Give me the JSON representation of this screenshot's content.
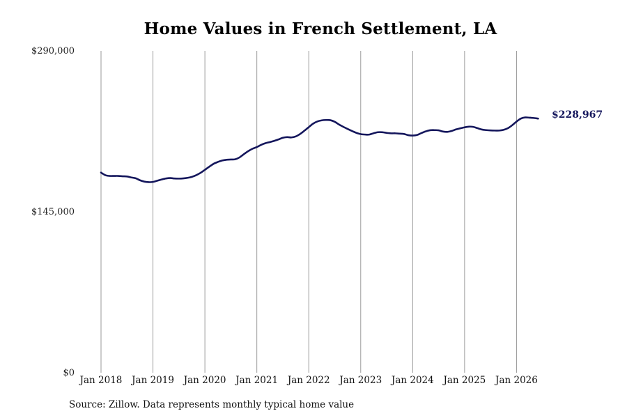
{
  "chart_data": {
    "type": "line",
    "title": "Home Values in French Settlement, LA",
    "xlabel": "",
    "ylabel": "",
    "ylim": [
      0,
      290000
    ],
    "y_ticks": [
      "$290,000",
      "$145,000",
      "$0"
    ],
    "y_tick_values": [
      290000,
      145000,
      0
    ],
    "x_ticks": [
      "Jan 2018",
      "Jan 2019",
      "Jan 2020",
      "Jan 2021",
      "Jan 2022",
      "Jan 2023",
      "Jan 2024",
      "Jan 2025",
      "Jan 2026"
    ],
    "x_tick_dates": [
      "2018-01",
      "2019-01",
      "2020-01",
      "2021-01",
      "2022-01",
      "2023-01",
      "2024-01",
      "2025-01",
      "2026-01"
    ],
    "grid": "vertical lines at x ticks",
    "line_color": "#14165c",
    "series": [
      {
        "x": [
          "2018-01",
          "2018-02",
          "2018-03",
          "2018-04",
          "2018-05",
          "2018-06",
          "2018-07",
          "2018-08",
          "2018-09",
          "2018-10",
          "2018-11",
          "2018-12",
          "2019-01",
          "2019-02",
          "2019-03",
          "2019-04",
          "2019-05",
          "2019-06",
          "2019-07",
          "2019-08",
          "2019-09",
          "2019-10",
          "2019-11",
          "2019-12",
          "2020-01",
          "2020-02",
          "2020-03",
          "2020-04",
          "2020-05",
          "2020-06",
          "2020-07",
          "2020-08",
          "2020-09",
          "2020-10",
          "2020-11",
          "2020-12",
          "2021-01",
          "2021-02",
          "2021-03",
          "2021-04",
          "2021-05",
          "2021-06",
          "2021-07",
          "2021-08",
          "2021-09",
          "2021-10",
          "2021-11",
          "2021-12",
          "2022-01",
          "2022-02",
          "2022-03",
          "2022-04",
          "2022-05",
          "2022-06",
          "2022-07",
          "2022-08",
          "2022-09",
          "2022-10",
          "2022-11",
          "2022-12",
          "2023-01",
          "2023-02",
          "2023-03",
          "2023-04",
          "2023-05",
          "2023-06",
          "2023-07",
          "2023-08",
          "2023-09",
          "2023-10",
          "2023-11",
          "2023-12",
          "2024-01",
          "2024-02",
          "2024-03",
          "2024-04",
          "2024-05",
          "2024-06",
          "2024-07",
          "2024-08",
          "2024-09",
          "2024-10",
          "2024-11",
          "2024-12",
          "2025-01",
          "2025-02",
          "2025-03",
          "2025-04",
          "2025-05",
          "2025-06",
          "2025-07",
          "2025-08",
          "2025-09",
          "2025-10",
          "2025-11",
          "2025-12",
          "2026-01",
          "2026-02",
          "2026-03",
          "2026-04",
          "2026-05",
          "2026-06"
        ],
        "values": [
          180300,
          178000,
          177300,
          177300,
          177300,
          177000,
          176800,
          175900,
          175200,
          173400,
          172200,
          171700,
          171900,
          173000,
          174100,
          175000,
          175400,
          175000,
          174900,
          175100,
          175600,
          176500,
          178000,
          180100,
          182800,
          185600,
          188200,
          189900,
          191200,
          191900,
          192100,
          192300,
          194000,
          196900,
          199600,
          201800,
          203300,
          205300,
          206800,
          207800,
          208900,
          210200,
          211700,
          212300,
          212000,
          212900,
          215100,
          218100,
          221300,
          224400,
          226400,
          227400,
          227700,
          227500,
          226100,
          223600,
          221500,
          219600,
          217800,
          216100,
          215000,
          214600,
          214600,
          215800,
          216700,
          216700,
          216100,
          215700,
          215700,
          215400,
          215100,
          214000,
          213700,
          214200,
          215900,
          217400,
          218500,
          218600,
          218400,
          217300,
          217000,
          217800,
          219200,
          220200,
          221100,
          221700,
          221500,
          220300,
          219100,
          218600,
          218300,
          218200,
          218200,
          218800,
          220300,
          223000,
          226300,
          229000,
          230000,
          229800,
          229500,
          228967
        ]
      }
    ],
    "end_label": "$228,967"
  },
  "source_note": "Source: Zillow. Data represents monthly typical home value"
}
